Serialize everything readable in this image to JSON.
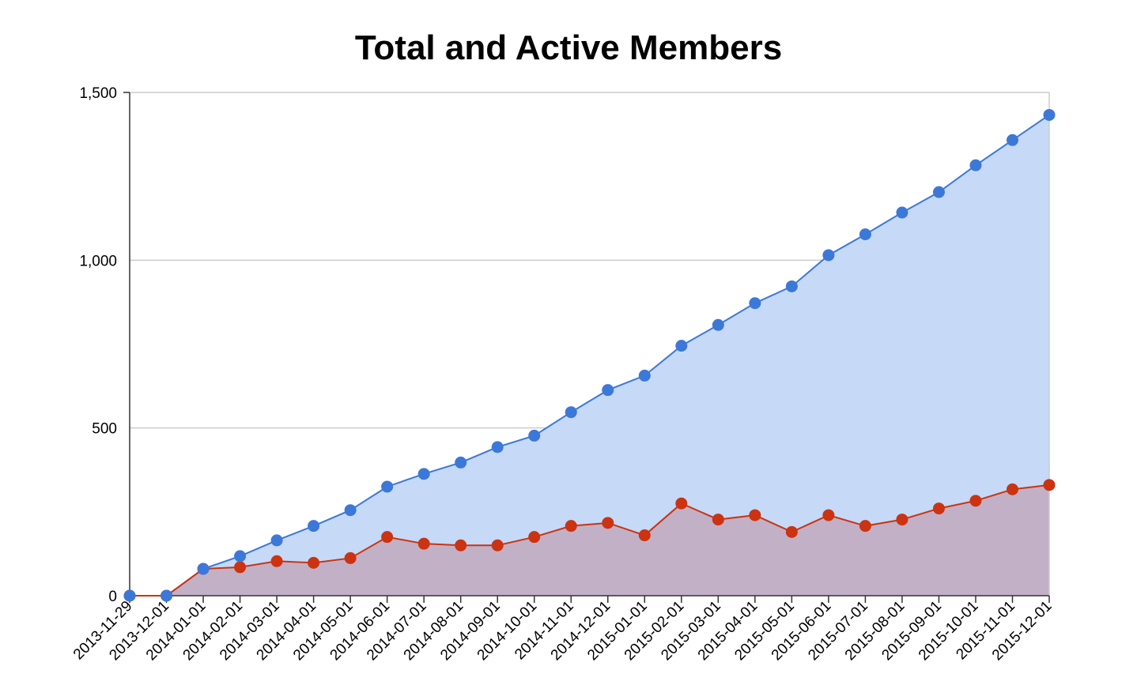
{
  "chart_data": {
    "type": "area",
    "title": "Total and Active Members",
    "xlabel": "",
    "ylabel": "",
    "ylim": [
      0,
      1500
    ],
    "y_ticks": [
      0,
      500,
      1000,
      1500
    ],
    "y_tick_labels": [
      "0",
      "500",
      "1,000",
      "1,500"
    ],
    "grid": true,
    "legend": "none",
    "categories": [
      "2013-11-29",
      "2013-12-01",
      "2014-01-01",
      "2014-02-01",
      "2014-03-01",
      "2014-04-01",
      "2014-05-01",
      "2014-06-01",
      "2014-07-01",
      "2014-08-01",
      "2014-09-01",
      "2014-10-01",
      "2014-11-01",
      "2014-12-01",
      "2015-01-01",
      "2015-02-01",
      "2015-03-01",
      "2015-04-01",
      "2015-05-01",
      "2015-06-01",
      "2015-07-01",
      "2015-08-01",
      "2015-09-01",
      "2015-10-01",
      "2015-11-01",
      "2015-12-01"
    ],
    "series": [
      {
        "color": "#3c78d8",
        "fill": "#c6d9f7",
        "values": [
          0,
          0,
          80,
          118,
          165,
          208,
          255,
          325,
          363,
          397,
          443,
          477,
          547,
          613,
          656,
          745,
          807,
          872,
          922,
          1015,
          1077,
          1142,
          1203,
          1283,
          1358,
          1433
        ]
      },
      {
        "color": "#cc3311",
        "fill": "#c2b0c7",
        "values": [
          0,
          0,
          80,
          85,
          103,
          98,
          112,
          175,
          155,
          150,
          150,
          175,
          208,
          217,
          180,
          275,
          227,
          240,
          190,
          240,
          208,
          227,
          260,
          283,
          317,
          330
        ]
      }
    ]
  }
}
